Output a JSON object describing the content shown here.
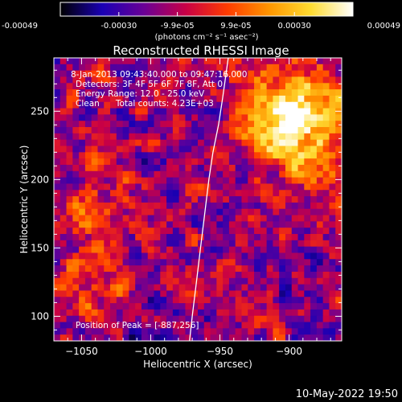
{
  "colorbar": {
    "colormap": [
      "#000000",
      "#1a00b4",
      "#6a0096",
      "#c80046",
      "#ff3c00",
      "#ff9600",
      "#ffdc32",
      "#ffffff"
    ],
    "range": [
      -0.00049,
      0.00049
    ],
    "tick_labels": [
      "-0.00049",
      "-0.00030",
      "-9.9e-05",
      "9.9e-05",
      "0.00030",
      "0.00049"
    ],
    "unit_label": "(photons cm⁻² s⁻¹ asec⁻²)"
  },
  "chart_data": {
    "type": "heatmap",
    "title": "Reconstructed RHESSI Image",
    "xlabel": "Heliocentric X (arcsec)",
    "ylabel": "Heliocentric Y (arcsec)",
    "xlim": [
      -1070,
      -862
    ],
    "ylim": [
      82,
      289
    ],
    "x_ticks": [
      -1050,
      -1000,
      -950,
      -900
    ],
    "x_tick_labels": [
      "−1050",
      "−1000",
      "−950",
      "−900"
    ],
    "y_ticks": [
      100,
      150,
      200,
      250
    ],
    "y_tick_labels": [
      "100",
      "150",
      "200",
      "250"
    ],
    "limb_curve": [
      [
        -972,
        82
      ],
      [
        -970,
        100
      ],
      [
        -967,
        125
      ],
      [
        -964,
        150
      ],
      [
        -961,
        175
      ],
      [
        -958,
        200
      ],
      [
        -955,
        220
      ],
      [
        -951,
        240
      ],
      [
        -948,
        260
      ],
      [
        -944,
        289
      ]
    ],
    "peak": [
      -887,
      256
    ],
    "grid": false,
    "annotations": [
      "8-Jan-2013 09:43:40.000 to 09:47:16.000",
      "Detectors: 3F 4F 5F 6F 7F 8F, Att 0",
      "Energy Range: 12.0 - 25.0 keV",
      "Clean      Total counts: 4.23E+03",
      "Position of Peak = [-887,256]"
    ]
  },
  "footer": {
    "timestamp": "10-May-2022 19:50"
  }
}
